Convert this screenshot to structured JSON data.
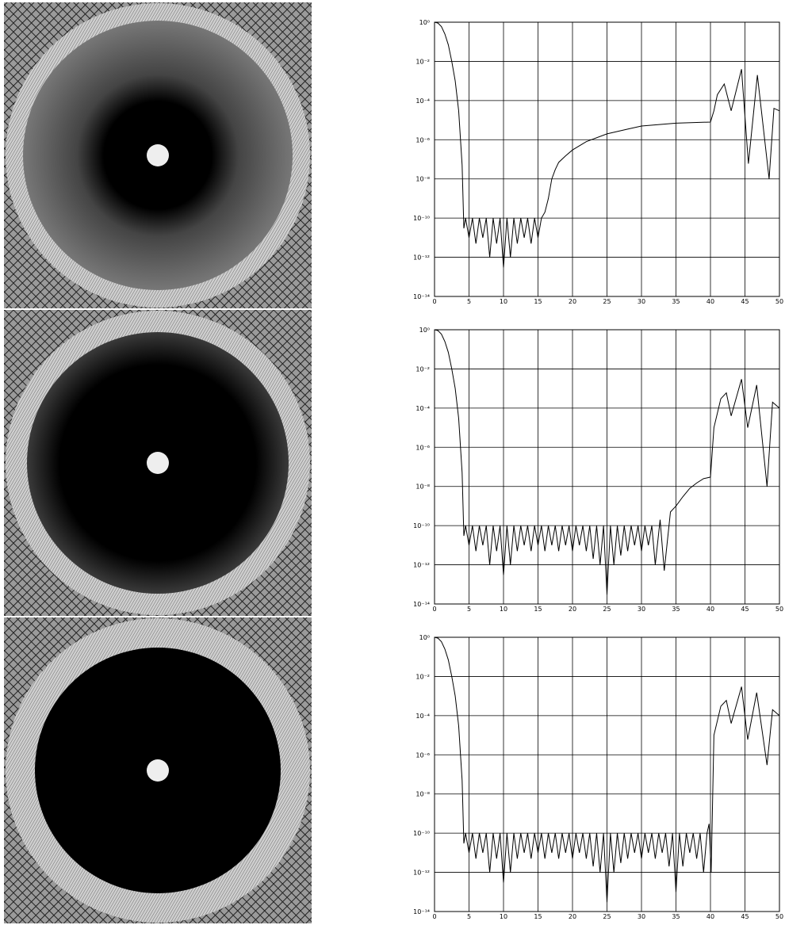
{
  "chart_data": [
    {
      "type": "line",
      "log_y": true,
      "grid": true,
      "x": [
        0,
        0.5,
        1,
        1.5,
        2,
        2.5,
        3,
        3.5,
        4,
        4.25,
        4.5,
        5,
        5.5,
        6,
        6.5,
        7,
        7.5,
        8,
        8.5,
        9,
        9.5,
        10,
        10.5,
        11,
        11.5,
        12,
        12.5,
        13,
        13.5,
        14,
        14.5,
        15,
        15.5,
        16,
        16.5,
        17,
        17.5,
        18,
        19,
        20,
        22,
        25,
        28,
        30,
        35,
        40,
        40.5,
        41,
        42,
        43,
        44.5,
        45.5,
        46.8,
        48.5,
        49.2,
        50
      ],
      "series": [
        {
          "color": "#000000",
          "values": [
            1,
            0.9,
            0.6,
            0.25,
            0.07,
            0.01,
            0.001,
            3e-05,
            5e-08,
            3e-11,
            1e-10,
            1e-11,
            1e-10,
            5e-12,
            1e-10,
            1e-11,
            1e-10,
            1e-12,
            1e-10,
            5e-12,
            1e-10,
            3e-13,
            1e-10,
            1e-12,
            1e-10,
            5e-12,
            1e-10,
            1e-11,
            1e-10,
            5e-12,
            1e-10,
            1e-11,
            1e-10,
            2e-10,
            1e-09,
            1e-08,
            3e-08,
            7e-08,
            1.5e-07,
            3e-07,
            8e-07,
            2e-06,
            3.5e-06,
            5e-06,
            7e-06,
            8e-06,
            3e-05,
            0.0002,
            0.0007,
            3e-05,
            0.004,
            6e-08,
            0.002,
            1e-08,
            4e-05,
            3e-05
          ]
        }
      ],
      "xlim": [
        0,
        50
      ],
      "xticks": [
        0,
        5,
        10,
        15,
        20,
        25,
        30,
        35,
        40,
        45,
        50
      ],
      "ylim": [
        1e-14,
        1
      ],
      "yticks": [
        {
          "value": 1,
          "label": "10⁰"
        },
        {
          "value": 0.01,
          "label": "10⁻²"
        },
        {
          "value": 0.0001,
          "label": "10⁻⁴"
        },
        {
          "value": 1e-06,
          "label": "10⁻⁶"
        },
        {
          "value": 1e-08,
          "label": "10⁻⁸"
        },
        {
          "value": 1e-10,
          "label": "10⁻¹⁰"
        },
        {
          "value": 1e-12,
          "label": "10⁻¹²"
        },
        {
          "value": 1e-14,
          "label": "10⁻¹⁴"
        }
      ]
    },
    {
      "type": "line",
      "log_y": true,
      "grid": true,
      "x": [
        0,
        0.5,
        1,
        1.5,
        2,
        2.5,
        3,
        3.5,
        4,
        4.25,
        4.5,
        5,
        5.5,
        6,
        6.5,
        7,
        7.5,
        8,
        8.5,
        9,
        9.5,
        10,
        10.5,
        11,
        11.5,
        12,
        12.5,
        13,
        13.5,
        14,
        14.5,
        15,
        15.5,
        16,
        16.5,
        17,
        17.5,
        18,
        18.5,
        19,
        19.5,
        20,
        20.5,
        21,
        21.5,
        22,
        22.5,
        23,
        23.5,
        24,
        24.5,
        25,
        25.5,
        26,
        26.5,
        27,
        27.5,
        28,
        28.5,
        29,
        29.5,
        30,
        30.5,
        31,
        31.5,
        32,
        32.7,
        33.3,
        34.2,
        35,
        36,
        37,
        38,
        39,
        40,
        40.5,
        41.5,
        42.3,
        43,
        44.5,
        45.4,
        46.7,
        48.2,
        49,
        50
      ],
      "series": [
        {
          "color": "#000000",
          "values": [
            1,
            0.9,
            0.6,
            0.25,
            0.07,
            0.01,
            0.001,
            3e-05,
            5e-08,
            3e-11,
            1e-10,
            1e-11,
            1e-10,
            5e-12,
            1e-10,
            1e-11,
            1e-10,
            1e-12,
            1e-10,
            5e-12,
            1e-10,
            3e-13,
            1e-10,
            1e-12,
            1e-10,
            5e-12,
            1e-10,
            1e-11,
            1e-10,
            5e-12,
            1e-10,
            1e-11,
            1e-10,
            5e-12,
            1e-10,
            1e-11,
            1e-10,
            5e-12,
            1e-10,
            1e-11,
            1e-10,
            5e-12,
            1e-10,
            1e-11,
            1e-10,
            5e-12,
            1e-10,
            2e-12,
            1e-10,
            1e-12,
            1e-10,
            3e-14,
            1e-10,
            1e-12,
            1e-10,
            3e-12,
            1e-10,
            5e-12,
            1e-10,
            1e-11,
            1e-10,
            5e-12,
            1e-10,
            1e-11,
            1e-10,
            1e-12,
            2e-10,
            5e-13,
            5e-10,
            1e-09,
            3e-09,
            8e-09,
            1.5e-08,
            2.5e-08,
            3e-08,
            1e-05,
            0.0003,
            0.0006,
            4e-05,
            0.003,
            1e-05,
            0.0015,
            1e-08,
            0.0002,
            0.0001
          ]
        }
      ],
      "xlim": [
        0,
        50
      ],
      "xticks": [
        0,
        5,
        10,
        15,
        20,
        25,
        30,
        35,
        40,
        45,
        50
      ],
      "ylim": [
        1e-14,
        1
      ],
      "yticks": [
        {
          "value": 1,
          "label": "10⁰"
        },
        {
          "value": 0.01,
          "label": "10⁻²"
        },
        {
          "value": 0.0001,
          "label": "10⁻⁴"
        },
        {
          "value": 1e-06,
          "label": "10⁻⁶"
        },
        {
          "value": 1e-08,
          "label": "10⁻⁸"
        },
        {
          "value": 1e-10,
          "label": "10⁻¹⁰"
        },
        {
          "value": 1e-12,
          "label": "10⁻¹²"
        },
        {
          "value": 1e-14,
          "label": "10⁻¹⁴"
        }
      ]
    },
    {
      "type": "line",
      "log_y": true,
      "grid": true,
      "x": [
        0,
        0.5,
        1,
        1.5,
        2,
        2.5,
        3,
        3.5,
        4,
        4.25,
        4.5,
        5,
        5.5,
        6,
        6.5,
        7,
        7.5,
        8,
        8.5,
        9,
        9.5,
        10,
        10.5,
        11,
        11.5,
        12,
        12.5,
        13,
        13.5,
        14,
        14.5,
        15,
        15.5,
        16,
        16.5,
        17,
        17.5,
        18,
        18.5,
        19,
        19.5,
        20,
        20.5,
        21,
        21.5,
        22,
        22.5,
        23,
        23.5,
        24,
        24.5,
        25,
        25.5,
        26,
        26.5,
        27,
        27.5,
        28,
        28.5,
        29,
        29.5,
        30,
        30.5,
        31,
        31.5,
        32,
        32.5,
        33,
        33.5,
        34,
        34.5,
        35,
        35.5,
        36,
        36.5,
        37,
        37.5,
        38,
        38.5,
        39,
        39.5,
        39.8,
        40.1,
        40.5,
        41.5,
        42.3,
        43,
        44.5,
        45.4,
        46.7,
        48.2,
        49,
        50
      ],
      "series": [
        {
          "color": "#000000",
          "values": [
            1,
            0.9,
            0.6,
            0.25,
            0.07,
            0.01,
            0.001,
            3e-05,
            5e-08,
            3e-11,
            1e-10,
            1e-11,
            1e-10,
            5e-12,
            1e-10,
            1e-11,
            1e-10,
            1e-12,
            1e-10,
            5e-12,
            1e-10,
            3e-13,
            1e-10,
            1e-12,
            1e-10,
            5e-12,
            1e-10,
            1e-11,
            1e-10,
            5e-12,
            1e-10,
            1e-11,
            1e-10,
            5e-12,
            1e-10,
            1e-11,
            1e-10,
            5e-12,
            1e-10,
            1e-11,
            1e-10,
            5e-12,
            1e-10,
            1e-11,
            1e-10,
            5e-12,
            1e-10,
            2e-12,
            1e-10,
            1e-12,
            1e-10,
            3e-14,
            1e-10,
            1e-12,
            1e-10,
            3e-12,
            1e-10,
            5e-12,
            1e-10,
            1e-11,
            1e-10,
            5e-12,
            1e-10,
            1e-11,
            1e-10,
            5e-12,
            1e-10,
            1e-11,
            1e-10,
            2e-12,
            1e-10,
            1e-13,
            1e-10,
            2e-12,
            1e-10,
            1e-11,
            1e-10,
            5e-12,
            1e-10,
            1e-12,
            1e-10,
            3e-10,
            1e-12,
            1e-05,
            0.0003,
            0.0006,
            4e-05,
            0.003,
            6e-06,
            0.0015,
            3e-07,
            0.0002,
            0.0001
          ]
        }
      ],
      "xlim": [
        0,
        50
      ],
      "xticks": [
        0,
        5,
        10,
        15,
        20,
        25,
        30,
        35,
        40,
        45,
        50
      ],
      "ylim": [
        1e-14,
        1
      ],
      "yticks": [
        {
          "value": 1,
          "label": "10⁰"
        },
        {
          "value": 0.01,
          "label": "10⁻²"
        },
        {
          "value": 0.0001,
          "label": "10⁻⁴"
        },
        {
          "value": 1e-06,
          "label": "10⁻⁶"
        },
        {
          "value": 1e-08,
          "label": "10⁻⁸"
        },
        {
          "value": 1e-10,
          "label": "10⁻¹⁰"
        },
        {
          "value": 1e-12,
          "label": "10⁻¹²"
        },
        {
          "value": 1e-14,
          "label": "10⁻¹⁴"
        }
      ]
    }
  ]
}
